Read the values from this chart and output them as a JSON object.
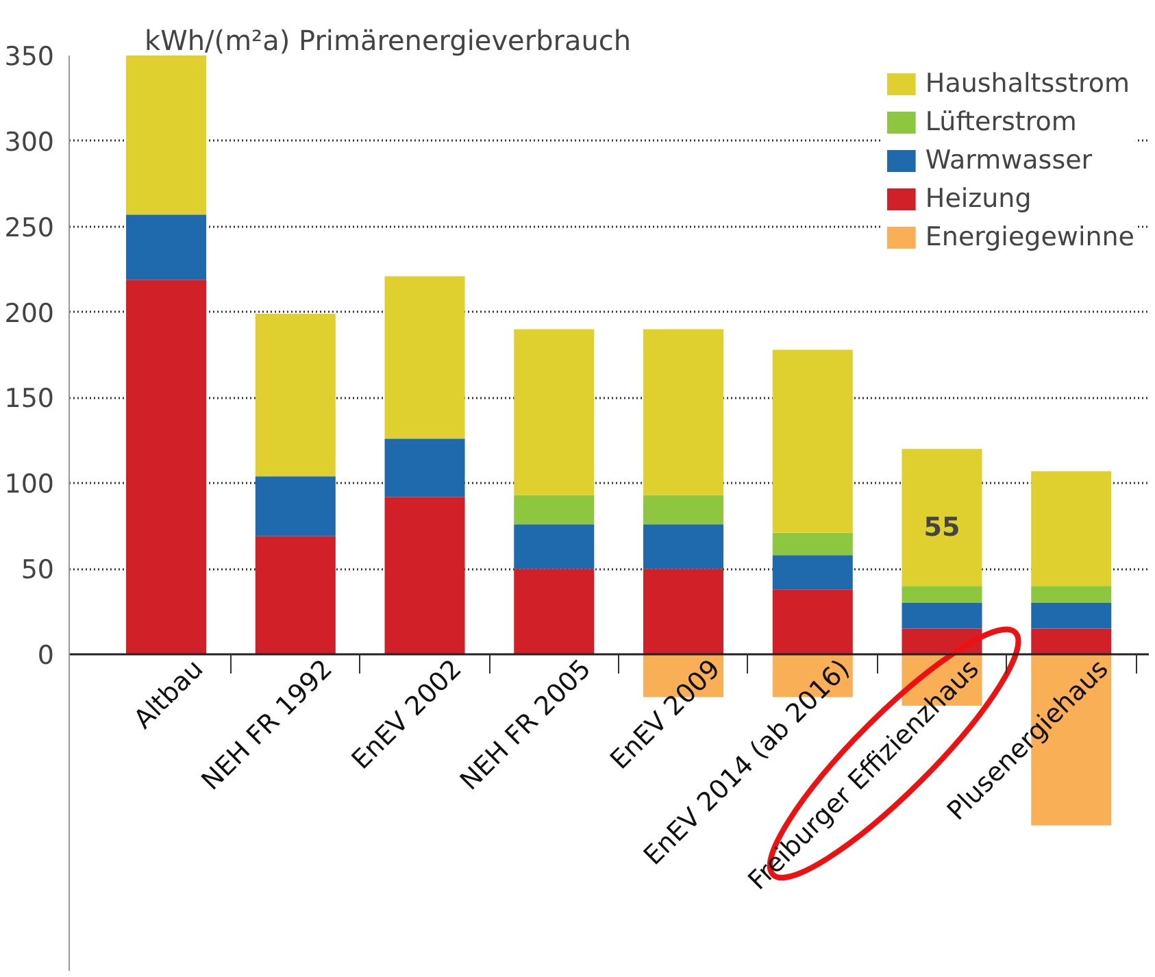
{
  "chart_data": {
    "type": "bar",
    "stacked": true,
    "title": "kWh/(m²a) Primärenergieverbrauch",
    "categories": [
      "Altbau",
      "NEH FR 1992",
      "EnEV 2002",
      "NEH FR 2005",
      "EnEV 2009",
      "EnEV 2014 (ab 2016)",
      "Freiburger Effizienzhaus",
      "Plusenergiehaus"
    ],
    "series": [
      {
        "name": "Heizung",
        "color": "#d22028",
        "values": [
          219,
          69,
          92,
          50,
          50,
          38,
          15,
          15
        ]
      },
      {
        "name": "Warmwasser",
        "color": "#1f6aad",
        "values": [
          38,
          35,
          34,
          26,
          26,
          20,
          15,
          15
        ]
      },
      {
        "name": "Lüfterstrom",
        "color": "#8dc63f",
        "values": [
          null,
          null,
          null,
          17,
          17,
          13,
          10,
          10
        ]
      },
      {
        "name": "Haushaltsstrom",
        "color": "#dfd030",
        "values": [
          93,
          95,
          95,
          97,
          97,
          107,
          80,
          67
        ]
      },
      {
        "name": "Energiegewinne",
        "color": "#f7941d",
        "values": [
          null,
          null,
          null,
          null,
          -25,
          -25,
          -30,
          -100
        ]
      }
    ],
    "ylim": [
      -185,
      350
    ],
    "yticks": [
      0,
      50,
      100,
      150,
      200,
      250,
      300,
      350
    ],
    "grid": "y",
    "legend": "top right",
    "annotations": [
      {
        "text": "55",
        "x": "Freiburger Effizienzhaus",
        "y": 75
      }
    ]
  }
}
